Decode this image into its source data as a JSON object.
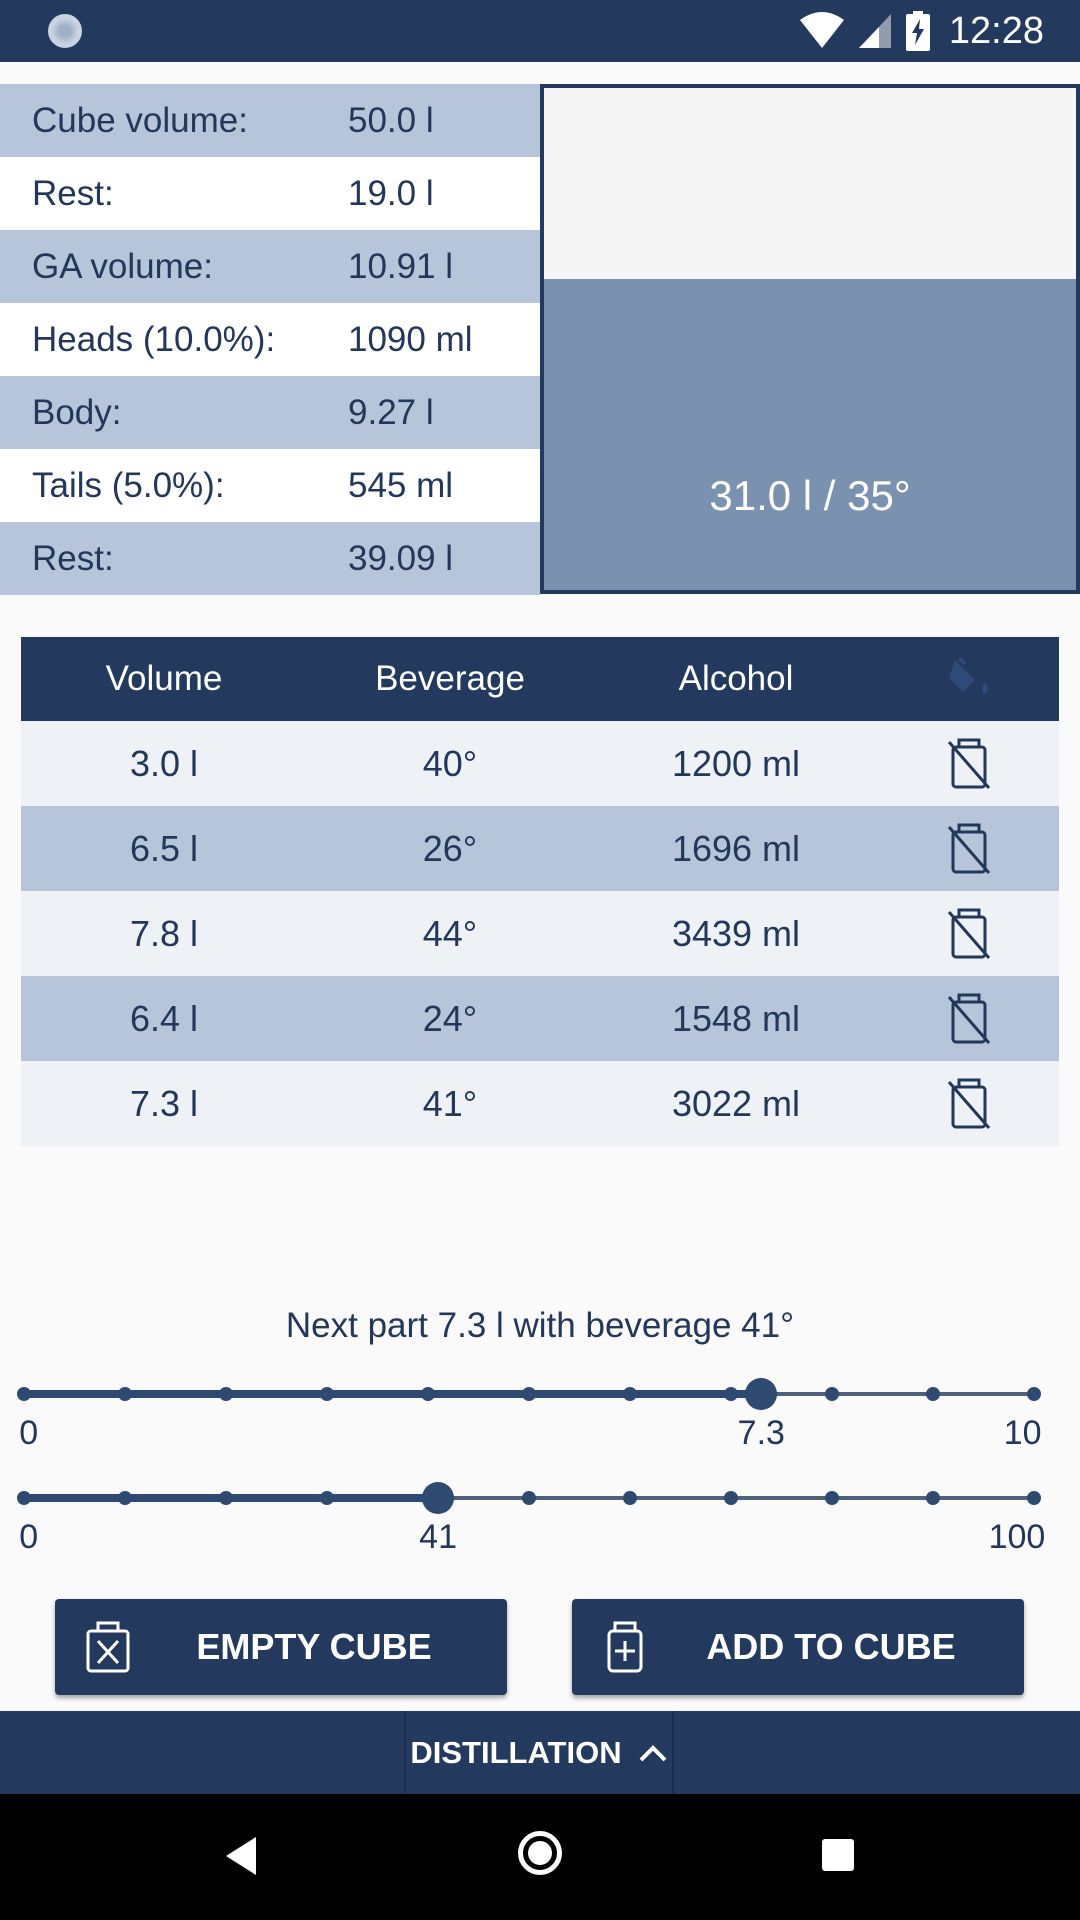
{
  "status_bar": {
    "time": "12:28"
  },
  "summary": [
    {
      "label": "Cube volume:",
      "value": "50.0 l"
    },
    {
      "label": "Rest:",
      "value": "19.0 l"
    },
    {
      "label": "GA volume:",
      "value": "10.91 l"
    },
    {
      "label": "Heads (10.0%):",
      "value": "1090 ml"
    },
    {
      "label": "Body:",
      "value": "9.27 l"
    },
    {
      "label": "Tails (5.0%):",
      "value": "545 ml"
    },
    {
      "label": "Rest:",
      "value": "39.09 l"
    }
  ],
  "tank": {
    "label": "31.0 l / 35°",
    "fill_fraction": 0.62
  },
  "table": {
    "headers": [
      "Volume",
      "Beverage",
      "Alcohol"
    ],
    "header_icon": "paint-bucket-icon",
    "rows": [
      {
        "volume": "3.0 l",
        "beverage": "40°",
        "alcohol": "1200 ml"
      },
      {
        "volume": "6.5 l",
        "beverage": "26°",
        "alcohol": "1696 ml"
      },
      {
        "volume": "7.8 l",
        "beverage": "44°",
        "alcohol": "3439 ml"
      },
      {
        "volume": "6.4 l",
        "beverage": "24°",
        "alcohol": "1548 ml"
      },
      {
        "volume": "7.3 l",
        "beverage": "41°",
        "alcohol": "3022 ml"
      }
    ],
    "row_icon": "delete-container-icon"
  },
  "next_part": "Next part 7.3 l with beverage 41°",
  "sliders": {
    "volume": {
      "min": 0,
      "max": 10,
      "value": 7.3,
      "min_label": "0",
      "max_label": "10",
      "value_label": "7.3",
      "steps": 10
    },
    "beverage": {
      "min": 0,
      "max": 100,
      "value": 41,
      "min_label": "0",
      "max_label": "100",
      "value_label": "41",
      "steps": 10
    }
  },
  "buttons": {
    "empty_cube": "EMPTY CUBE",
    "add_to_cube": "ADD TO CUBE"
  },
  "bottom_tab": {
    "label": "DISTILLATION"
  },
  "colors": {
    "primary": "#233a5e",
    "row_shaded": "#b6c5d9",
    "row_light": "#eef2f7",
    "tank_liquid": "#7b91b0"
  }
}
